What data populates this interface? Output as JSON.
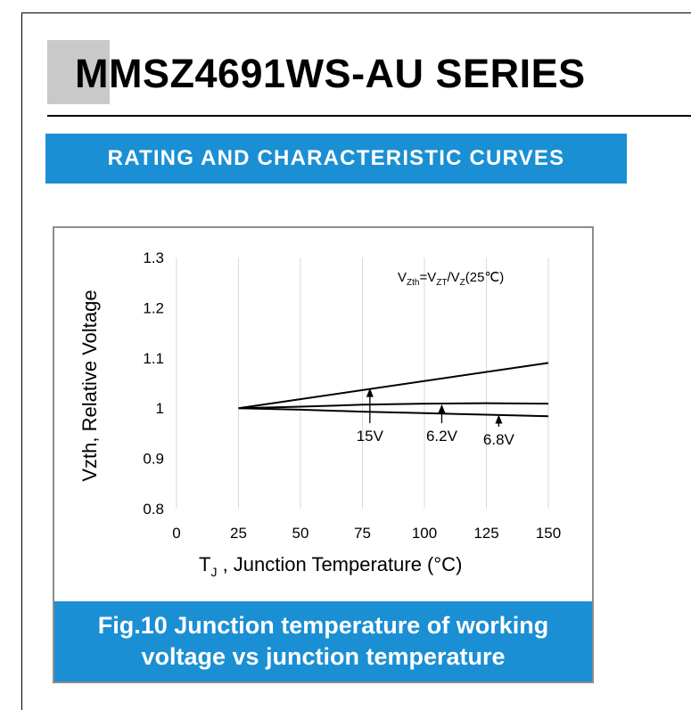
{
  "header": {
    "title": "MMSZ4691WS-AU SERIES",
    "section_label": "RATING AND CHARACTERISTIC CURVES"
  },
  "colors": {
    "banner_blue": "#1b8fd3",
    "title_accent_gray": "#c9c9c9",
    "frame_gray": "#8c8c8c",
    "gridline": "#d9d9d9"
  },
  "figure": {
    "caption_line1": "Fig.10 Junction temperature of working",
    "caption_line2": "voltage vs junction temperature"
  },
  "chart_data": {
    "type": "line",
    "xlabel_main": "T",
    "xlabel_sub": "J",
    "xlabel_rest": " , Junction Temperature  (°C)",
    "ylabel": "Vzth, Relative Voltage",
    "xlim": [
      0,
      150
    ],
    "ylim": [
      0.8,
      1.3
    ],
    "xticks": [
      0,
      25,
      50,
      75,
      100,
      125,
      150
    ],
    "yticks": [
      0.8,
      0.9,
      1,
      1.1,
      1.2,
      1.3
    ],
    "ytick_labels": [
      "0.8",
      "0.9",
      "1",
      "1.1",
      "1.2",
      "1.3"
    ],
    "grid": "vertical",
    "formula": {
      "p1": "V",
      "s1": "Zth",
      "p2": "=V",
      "s2": "ZT",
      "p3": "/V",
      "s3": "Z",
      "p4": "(25℃)"
    },
    "series": [
      {
        "name": "15V",
        "x": [
          25,
          150
        ],
        "y": [
          1.0,
          1.09
        ]
      },
      {
        "name": "6.2V",
        "x": [
          25,
          50,
          75,
          100,
          125,
          150
        ],
        "y": [
          1.0,
          1.003,
          1.007,
          1.009,
          1.01,
          1.009
        ]
      },
      {
        "name": "6.8V",
        "x": [
          25,
          50,
          75,
          100,
          125,
          150
        ],
        "y": [
          1.0,
          0.997,
          0.993,
          0.99,
          0.987,
          0.984
        ]
      }
    ],
    "annotations": [
      {
        "label": "15V",
        "x": 78,
        "y_top": 1.04,
        "y_bottom": 0.97
      },
      {
        "label": "6.2V",
        "x": 107,
        "y_top": 1.008,
        "y_bottom": 0.97
      },
      {
        "label": "6.8V",
        "x": 130,
        "y_top": 0.987,
        "y_bottom": 0.963
      }
    ]
  }
}
